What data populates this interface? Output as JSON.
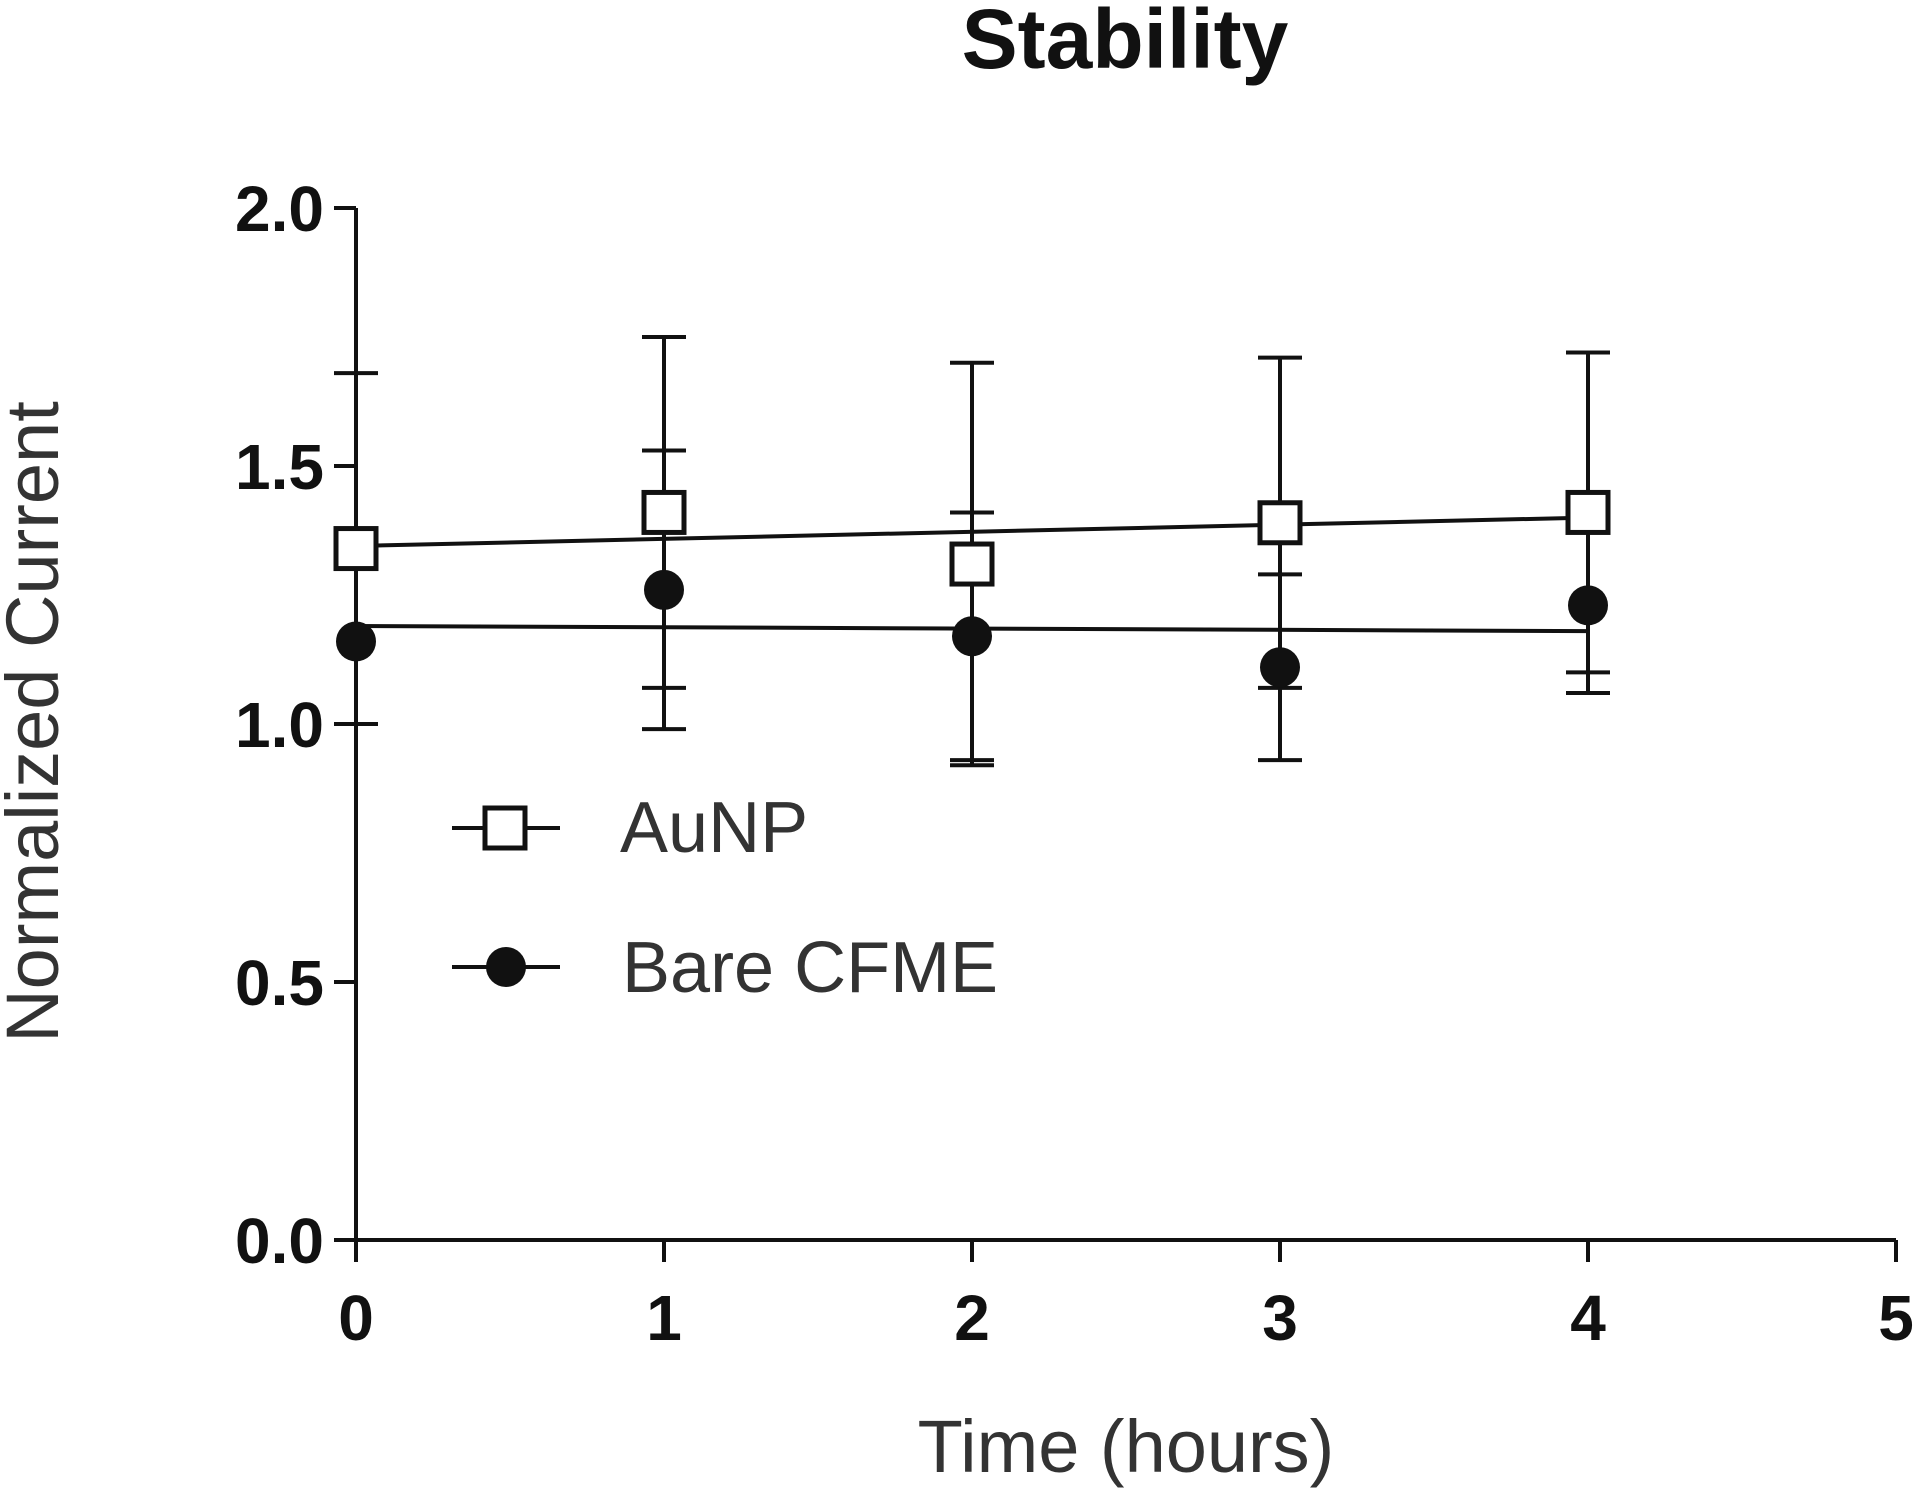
{
  "chart_data": {
    "type": "line",
    "title": "Stability",
    "xlabel": "Time (hours)",
    "ylabel": "Normalized Current",
    "xlim": [
      0,
      5
    ],
    "ylim": [
      0,
      2.0
    ],
    "x_ticks": [
      "0",
      "1",
      "2",
      "3",
      "4",
      "5"
    ],
    "y_ticks": [
      "0.0",
      "0.5",
      "1.0",
      "1.5",
      "2.0"
    ],
    "legend_position": "center-left",
    "series": [
      {
        "name": "AuNP",
        "marker": "open-square",
        "x": [
          0,
          1,
          2,
          3,
          4
        ],
        "values": [
          1.34,
          1.41,
          1.31,
          1.39,
          1.41
        ],
        "error": [
          0.34,
          0.34,
          0.39,
          0.32,
          0.31
        ],
        "fit": [
          1.345,
          1.4
        ]
      },
      {
        "name": "Bare CFME",
        "marker": "filled-circle",
        "x": [
          0,
          1,
          2,
          3,
          4
        ],
        "values": [
          1.16,
          1.26,
          1.17,
          1.11,
          1.23
        ],
        "error": [
          0.16,
          0.27,
          0.24,
          0.18,
          0.17
        ],
        "fit": [
          1.19,
          1.18
        ]
      }
    ]
  }
}
